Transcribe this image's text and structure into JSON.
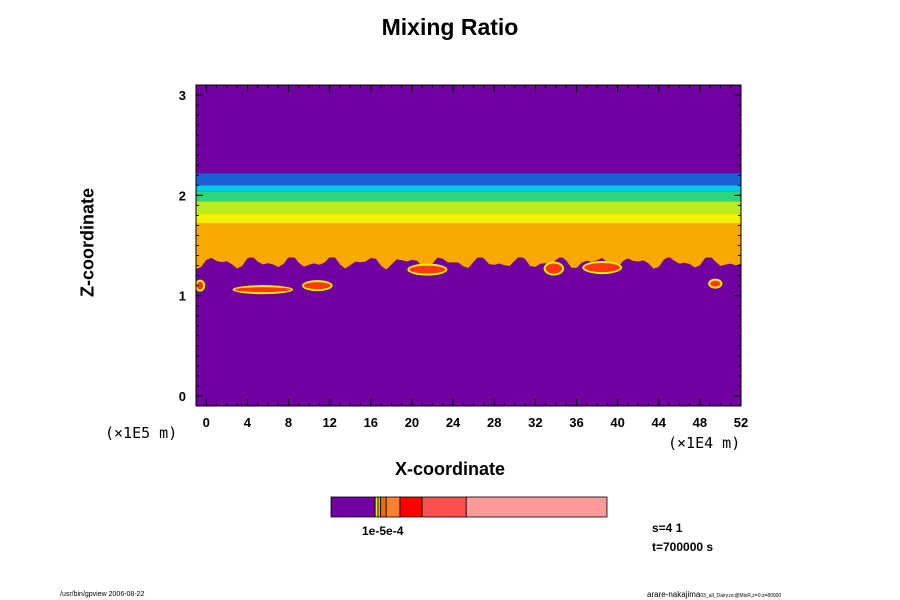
{
  "chart_data": {
    "type": "heatmap",
    "title": "Mixing Ratio",
    "xlabel": "X-coordinate",
    "ylabel": "Z-coordinate",
    "x_ticks": [
      "0",
      "4",
      "8",
      "12",
      "16",
      "20",
      "24",
      "28",
      "32",
      "36",
      "40",
      "44",
      "48",
      "52"
    ],
    "y_ticks": [
      "0",
      "1",
      "2",
      "3"
    ],
    "xlim": [
      -1,
      52
    ],
    "ylim": [
      -0.1,
      3.1
    ],
    "x_scale_label": "(×1E4 m)",
    "y_scale_label": "(×1E5 m)",
    "bands": [
      {
        "z_bottom": 2.1,
        "z_top": 2.22,
        "color": "#1a5fd6"
      },
      {
        "z_bottom": 2.04,
        "z_top": 2.1,
        "color": "#00c8e8"
      },
      {
        "z_bottom": 1.94,
        "z_top": 2.04,
        "color": "#2ed57a"
      },
      {
        "z_bottom": 1.82,
        "z_top": 1.94,
        "color": "#b8ee20"
      },
      {
        "z_bottom": 1.72,
        "z_top": 1.82,
        "color": "#f2f000"
      },
      {
        "z_bottom": 1.38,
        "z_top": 1.72,
        "color": "#f8a800"
      }
    ],
    "background_color": "#7000a0",
    "high_patches": [
      {
        "x_center": 5.5,
        "z_center": 1.06,
        "x_width": 5.5,
        "z_height": 0.05
      },
      {
        "x_center": 10.8,
        "z_center": 1.1,
        "x_width": 2.6,
        "z_height": 0.07
      },
      {
        "x_center": 21.5,
        "z_center": 1.26,
        "x_width": 3.5,
        "z_height": 0.08
      },
      {
        "x_center": 33.8,
        "z_center": 1.27,
        "x_width": 1.6,
        "z_height": 0.1
      },
      {
        "x_center": 38.5,
        "z_center": 1.28,
        "x_width": 3.5,
        "z_height": 0.09
      },
      {
        "x_center": 49.5,
        "z_center": 1.12,
        "x_width": 1.0,
        "z_height": 0.06
      },
      {
        "x_center": -0.6,
        "z_center": 1.1,
        "x_width": 0.6,
        "z_height": 0.08
      }
    ],
    "colorbar": {
      "segments": [
        {
          "value_frac": 0.16,
          "color": "#7000a0"
        },
        {
          "value_frac": 0.01,
          "color": "#f2f000"
        },
        {
          "value_frac": 0.01,
          "color": "#f8a800"
        },
        {
          "value_frac": 0.02,
          "color": "#e87000"
        },
        {
          "value_frac": 0.05,
          "color": "#ff8030"
        },
        {
          "value_frac": 0.08,
          "color": "#ff0000"
        },
        {
          "value_frac": 0.16,
          "color": "#ff5050"
        },
        {
          "value_frac": 0.51,
          "color": "#ff9a9a"
        }
      ],
      "label": "1e-5e-4"
    }
  },
  "info": {
    "step": "s=4 1",
    "time": "t=700000 s"
  },
  "footer": {
    "left": "/usr/bin/gpview 2006-08-22",
    "right_main": "arare-nakajima",
    "right_small": "03_all_Dairy.nc@MixR,z=0:z=80000"
  }
}
